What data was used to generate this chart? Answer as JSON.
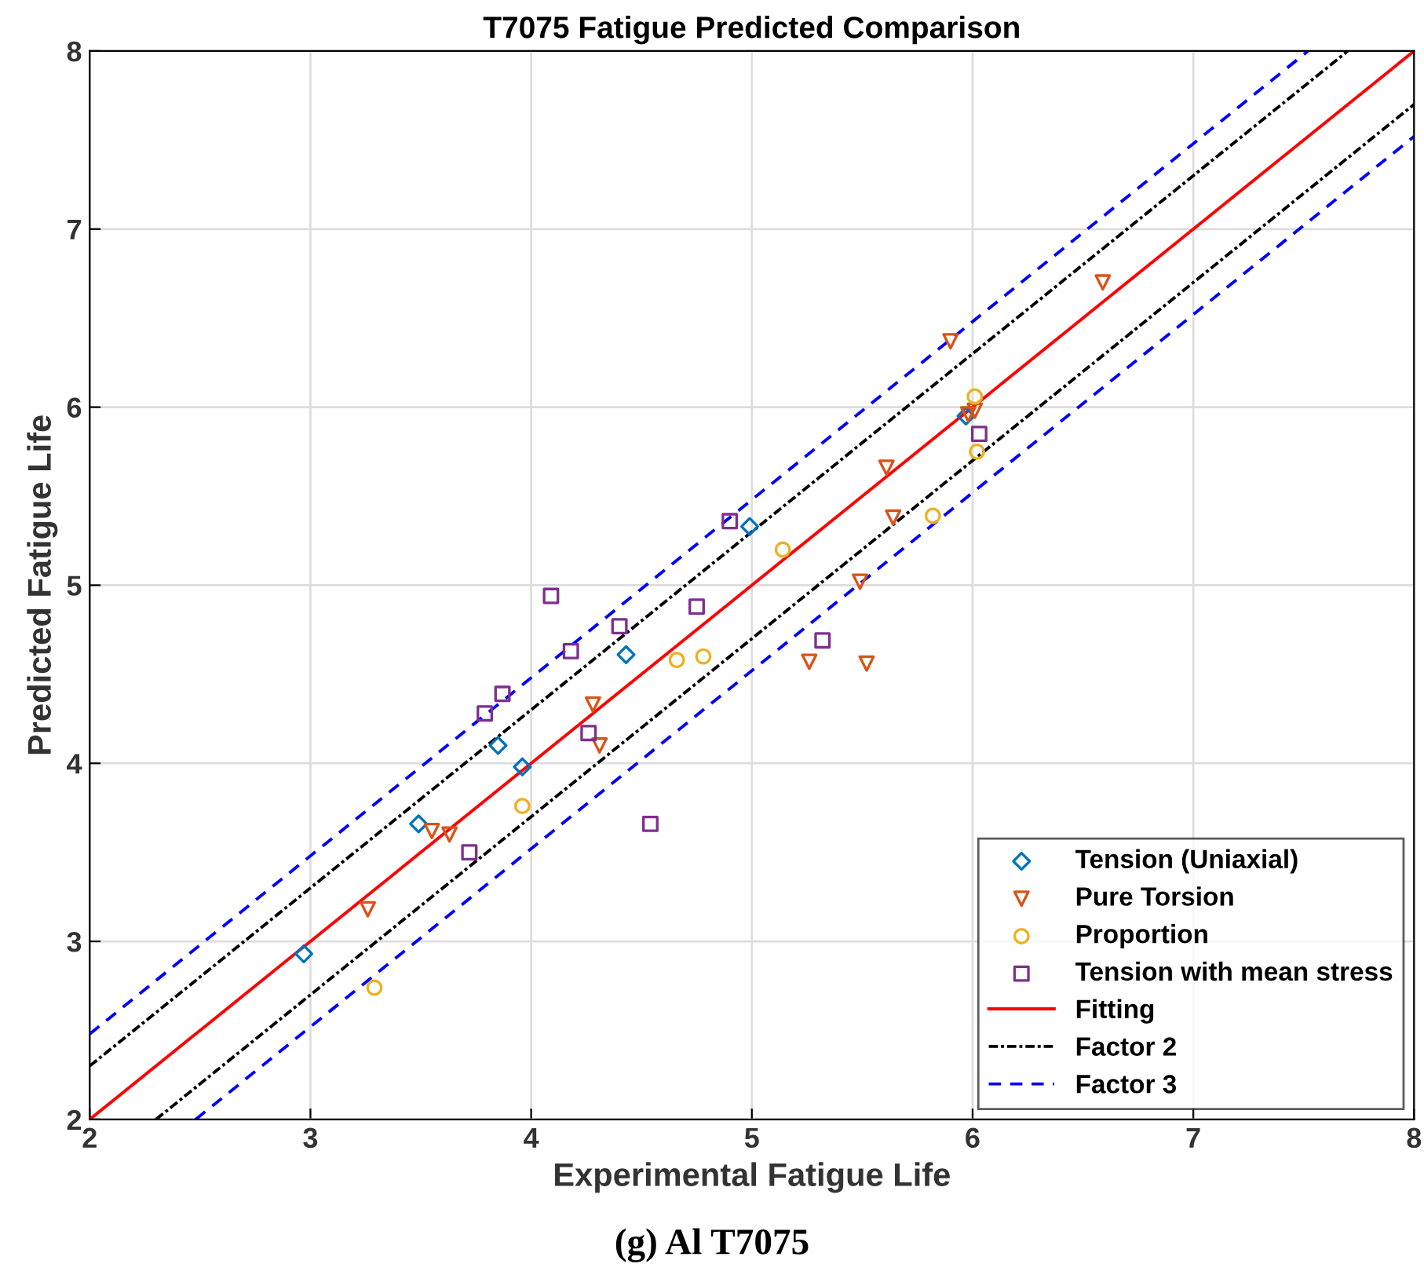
{
  "chart_data": {
    "type": "scatter",
    "title": "T7075 Fatigue Predicted Comparison",
    "xlabel": "Experimental Fatigue Life",
    "ylabel": "Predicted Fatigue Life",
    "annotations": [
      "(g) Al T7075"
    ],
    "xlim": [
      2,
      8
    ],
    "ylim": [
      2,
      8
    ],
    "xticks": [
      2,
      3,
      4,
      5,
      6,
      7,
      8
    ],
    "yticks": [
      2,
      3,
      4,
      5,
      6,
      7,
      8
    ],
    "grid": true,
    "legend": "bottom right",
    "series": [
      {
        "name": "Tension (Uniaxial)",
        "color": "#0072bd",
        "marker": "diamond",
        "x": [
          2.97,
          3.49,
          3.85,
          3.96,
          4.43,
          4.99,
          5.97
        ],
        "values": [
          2.93,
          3.66,
          4.1,
          3.98,
          4.61,
          5.33,
          5.95
        ]
      },
      {
        "name": "Pure Torsion",
        "color": "#d95319",
        "marker": "triangle",
        "x": [
          3.26,
          3.55,
          3.63,
          4.28,
          4.31,
          5.26,
          5.49,
          5.52,
          5.61,
          5.64,
          5.9,
          5.98,
          6.01,
          6.59
        ],
        "values": [
          3.18,
          3.62,
          3.6,
          4.33,
          4.1,
          4.57,
          5.02,
          4.56,
          5.66,
          5.38,
          6.37,
          5.96,
          5.98,
          6.7
        ]
      },
      {
        "name": "Proportion",
        "color": "#edb120",
        "marker": "circle",
        "x": [
          3.29,
          3.96,
          4.66,
          4.78,
          5.14,
          5.82,
          6.01,
          6.02
        ],
        "values": [
          2.74,
          3.76,
          4.58,
          4.6,
          5.2,
          5.39,
          6.06,
          5.75
        ]
      },
      {
        "name": "Tension with mean stress",
        "color": "#7e2f8e",
        "marker": "square",
        "x": [
          3.72,
          3.79,
          3.87,
          4.09,
          4.18,
          4.26,
          4.4,
          4.54,
          4.75,
          4.9,
          5.32,
          6.03
        ],
        "values": [
          3.5,
          4.28,
          4.39,
          4.94,
          4.63,
          4.17,
          4.77,
          3.66,
          4.88,
          5.36,
          4.69,
          5.85
        ]
      },
      {
        "name": "Fitting",
        "type": "line",
        "color": "#ff0000",
        "line_style": "solid",
        "x": [
          2,
          8
        ],
        "values": [
          2,
          8
        ]
      },
      {
        "name": "Factor 2",
        "type": "line",
        "color": "#000000",
        "line_style": "dashdot",
        "x": [
          2,
          7.7
        ],
        "values": [
          2.3,
          8
        ]
      },
      {
        "type": "line",
        "color": "#000000",
        "line_style": "dashdot",
        "x": [
          2.3,
          8
        ],
        "values": [
          2,
          7.7
        ]
      },
      {
        "name": "Factor 3",
        "type": "line",
        "color": "#0000ff",
        "line_style": "dashed",
        "x": [
          2,
          7.52
        ],
        "values": [
          2.48,
          8
        ]
      },
      {
        "type": "line",
        "color": "#0000ff",
        "line_style": "dashed",
        "x": [
          2.48,
          8
        ],
        "values": [
          2,
          7.52
        ]
      }
    ]
  }
}
